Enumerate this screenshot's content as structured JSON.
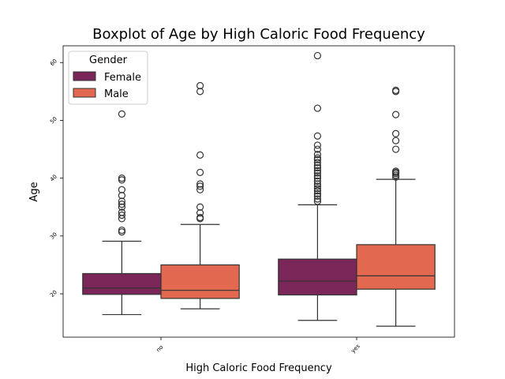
{
  "chart_data": {
    "type": "boxplot",
    "title": "Boxplot of Age by High Caloric Food Frequency",
    "xlabel": "High Caloric Food Frequency",
    "ylabel": "Age",
    "categories": [
      "no",
      "yes"
    ],
    "yticks": [
      20,
      30,
      40,
      50,
      60
    ],
    "ylim": [
      12.5,
      62.9
    ],
    "legend": {
      "title": "Gender",
      "position": "top-left"
    },
    "grid": false,
    "series": [
      {
        "name": "Female",
        "color": "#7b2658",
        "boxes": [
          {
            "category": "no",
            "whisker_low": 16.4,
            "q1": 19.9,
            "median": 21.0,
            "q3": 23.5,
            "whisker_high": 29.1,
            "outliers": [
              30.7,
              31.0,
              33.0,
              33.6,
              34.1,
              35.0,
              35.5,
              36.0,
              37.0,
              38.0,
              39.7,
              40.0,
              51.1
            ]
          },
          {
            "category": "yes",
            "whisker_low": 15.4,
            "q1": 19.8,
            "median": 22.2,
            "q3": 26.0,
            "whisker_high": 35.4,
            "outliers": [
              36.0,
              36.4,
              36.9,
              37.3,
              37.8,
              38.2,
              38.6,
              39.0,
              39.5,
              40.0,
              40.4,
              40.9,
              41.3,
              41.8,
              42.2,
              42.7,
              43.2,
              43.5,
              44.1,
              45.0,
              45.7,
              47.3,
              52.1,
              61.2
            ]
          }
        ]
      },
      {
        "name": "Male",
        "color": "#e2694f",
        "boxes": [
          {
            "category": "no",
            "whisker_low": 17.4,
            "q1": 19.2,
            "median": 20.6,
            "q3": 25.0,
            "whisker_high": 32.0,
            "outliers": [
              33.0,
              33.2,
              34.0,
              35.0,
              38.0,
              38.6,
              39.0,
              41.0,
              44.0,
              55.0,
              56.0
            ]
          },
          {
            "category": "yes",
            "whisker_low": 14.4,
            "q1": 20.8,
            "median": 23.1,
            "q3": 28.5,
            "whisker_high": 39.8,
            "outliers": [
              40.2,
              40.5,
              40.8,
              41.0,
              41.2,
              45.0,
              46.5,
              47.7,
              51.0,
              55.0,
              55.2
            ]
          }
        ]
      }
    ]
  }
}
